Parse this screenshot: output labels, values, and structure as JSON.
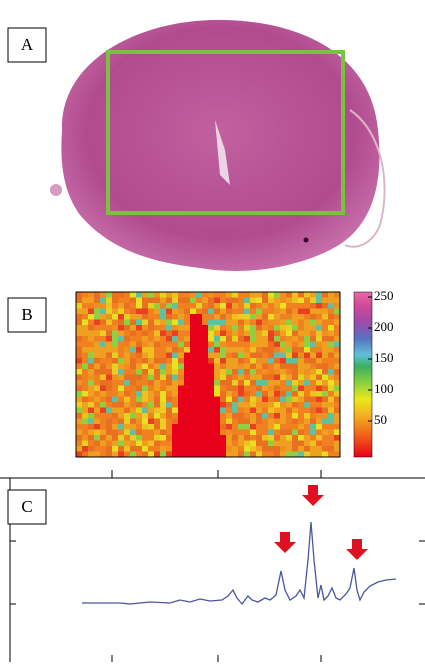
{
  "panels": [
    {
      "label": "A"
    },
    {
      "label": "B",
      "colorbar_ticks": [
        250,
        200,
        150,
        100,
        50
      ]
    },
    {
      "label": "C"
    }
  ]
}
